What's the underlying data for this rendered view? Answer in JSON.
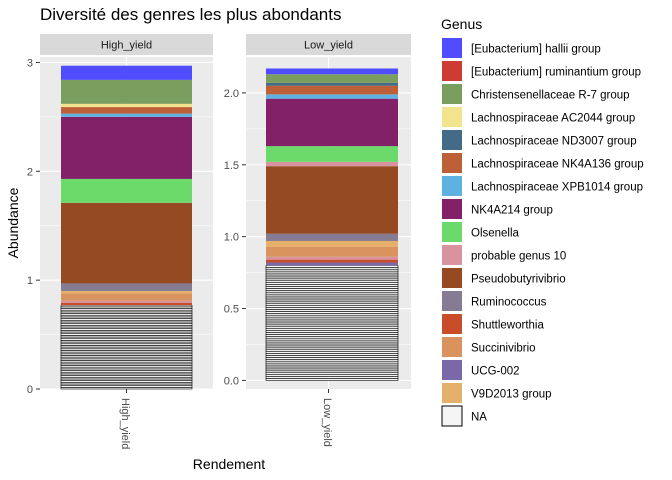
{
  "chart_data": {
    "type": "bar",
    "stacked": true,
    "faceted": true,
    "title": "Diversité des genres les plus abondants",
    "xlabel": "Rendement",
    "ylabel": "Abundance",
    "legend_title": "Genus",
    "legend_position": "right",
    "background": "#ebebeb",
    "grid": true,
    "facets": [
      {
        "label": "High_yield",
        "category": "High_yield",
        "ylim": [
          0,
          3.05
        ],
        "yticks": [
          0,
          1,
          2,
          3
        ],
        "ytick_labels": [
          "0",
          "1",
          "2",
          "3"
        ],
        "na_value": 0.77,
        "na_segments": 50,
        "segments": [
          {
            "genus": "Shuttleworthia",
            "value": 0.02
          },
          {
            "genus": "probable genus 10",
            "value": 0.02
          },
          {
            "genus": "Succinivibrio",
            "value": 0.07
          },
          {
            "genus": "V9D2013 group",
            "value": 0.02
          },
          {
            "genus": "Ruminococcus",
            "value": 0.07
          },
          {
            "genus": "Pseudobutyrivibrio",
            "value": 0.74
          },
          {
            "genus": "Olsenella",
            "value": 0.22
          },
          {
            "genus": "NK4A214 group",
            "value": 0.57
          },
          {
            "genus": "Lachnospiraceae XPB1014 group",
            "value": 0.03
          },
          {
            "genus": "Lachnospiraceae NK4A136 group",
            "value": 0.06
          },
          {
            "genus": "Lachnospiraceae AC2044 group",
            "value": 0.03
          },
          {
            "genus": "Christensenellaceae R-7 group",
            "value": 0.22
          },
          {
            "genus": "[Eubacterium] hallii group",
            "value": 0.13
          }
        ]
      },
      {
        "label": "Low_yield",
        "category": "Low_yield",
        "ylim": [
          -0.06,
          2.25
        ],
        "yticks": [
          0,
          0.5,
          1,
          1.5,
          2
        ],
        "ytick_labels": [
          "0.0",
          "0.5",
          "1.0",
          "1.5",
          "2.0"
        ],
        "na_value": 0.8,
        "na_segments": 60,
        "segments": [
          {
            "genus": "UCG-002",
            "value": 0.02
          },
          {
            "genus": "Shuttleworthia",
            "value": 0.02
          },
          {
            "genus": "probable genus 10",
            "value": 0.02
          },
          {
            "genus": "Succinivibrio",
            "value": 0.07
          },
          {
            "genus": "V9D2013 group",
            "value": 0.04
          },
          {
            "genus": "Ruminococcus",
            "value": 0.05
          },
          {
            "genus": "Pseudobutyrivibrio",
            "value": 0.47
          },
          {
            "genus": "probable genus 10",
            "value": 0.03
          },
          {
            "genus": "Olsenella",
            "value": 0.11
          },
          {
            "genus": "NK4A214 group",
            "value": 0.33
          },
          {
            "genus": "Lachnospiraceae XPB1014 group",
            "value": 0.03
          },
          {
            "genus": "Lachnospiraceae NK4A136 group",
            "value": 0.06
          },
          {
            "genus": "Lachnospiraceae ND3007 group",
            "value": 0.02
          },
          {
            "genus": "Christensenellaceae R-7 group",
            "value": 0.06
          },
          {
            "genus": "[Eubacterium] hallii group",
            "value": 0.04
          }
        ]
      }
    ],
    "legend": [
      {
        "label": "[Eubacterium] hallii group",
        "color": "#4f4dff"
      },
      {
        "label": "[Eubacterium] ruminantium group",
        "color": "#cc3b34"
      },
      {
        "label": "Christensenellaceae R-7 group",
        "color": "#7a9e5e"
      },
      {
        "label": "Lachnospiraceae AC2044 group",
        "color": "#f2e38f"
      },
      {
        "label": "Lachnospiraceae ND3007 group",
        "color": "#436a86"
      },
      {
        "label": "Lachnospiraceae NK4A136 group",
        "color": "#bd6038"
      },
      {
        "label": "Lachnospiraceae XPB1014 group",
        "color": "#5fb1e1"
      },
      {
        "label": "NK4A214 group",
        "color": "#822068"
      },
      {
        "label": "Olsenella",
        "color": "#6cd96b"
      },
      {
        "label": "probable genus 10",
        "color": "#d8939e"
      },
      {
        "label": "Pseudobutyrivibrio",
        "color": "#954a22"
      },
      {
        "label": "Ruminococcus",
        "color": "#857b92"
      },
      {
        "label": "Shuttleworthia",
        "color": "#c84d2a"
      },
      {
        "label": "Succinivibrio",
        "color": "#d9935e"
      },
      {
        "label": "UCG-002",
        "color": "#7b68a8"
      },
      {
        "label": "V9D2013 group",
        "color": "#e5b06a"
      },
      {
        "label": "NA",
        "color": "#f5f5f5"
      }
    ]
  }
}
